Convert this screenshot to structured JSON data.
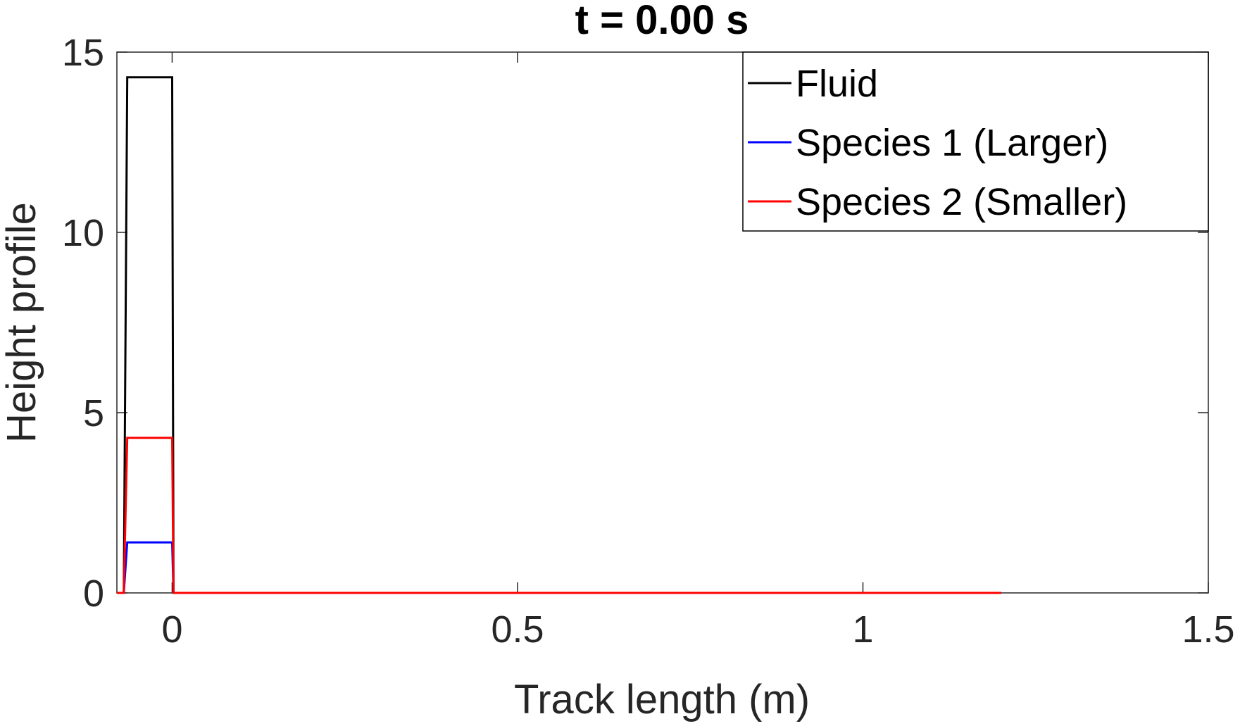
{
  "chart_data": {
    "type": "line",
    "title": "t =  0.00 s",
    "xlabel": "Track length (m)",
    "ylabel": "Height profile",
    "xlim": [
      -0.08,
      1.5
    ],
    "ylim": [
      0,
      15
    ],
    "xticks": [
      0,
      0.5,
      1,
      1.5
    ],
    "xtick_labels": [
      "0",
      "0.5",
      "1",
      "1.5"
    ],
    "yticks": [
      0,
      5,
      10,
      15
    ],
    "ytick_labels": [
      "0",
      "5",
      "10",
      "15"
    ],
    "grid": false,
    "legend_position": "top-right",
    "series": [
      {
        "name": "Fluid",
        "color": "#000000",
        "x": [
          -0.08,
          -0.07,
          -0.065,
          0,
          0.002,
          1.2
        ],
        "y": [
          0,
          0,
          14.3,
          14.3,
          0,
          0
        ]
      },
      {
        "name": "Species 1 (Larger)",
        "color": "#0000ff",
        "x": [
          -0.08,
          -0.07,
          -0.065,
          0,
          0.002,
          1.2
        ],
        "y": [
          0,
          0,
          1.4,
          1.4,
          0,
          0
        ]
      },
      {
        "name": "Species 2 (Smaller)",
        "color": "#ff0000",
        "x": [
          -0.08,
          -0.07,
          -0.065,
          0,
          0.002,
          1.2
        ],
        "y": [
          0,
          0,
          4.3,
          4.3,
          0,
          0
        ]
      }
    ]
  }
}
